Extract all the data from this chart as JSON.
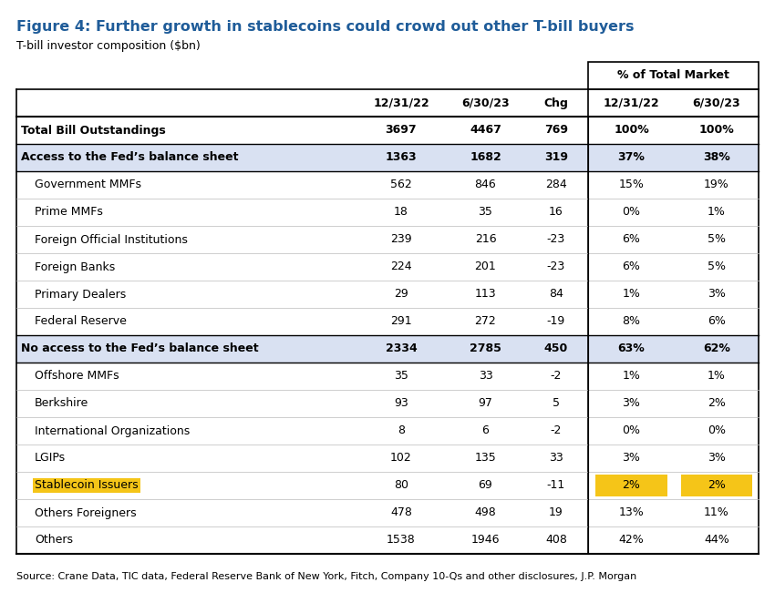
{
  "title": "Figure 4: Further growth in stablecoins could crowd out other T-bill buyers",
  "subtitle": "T-bill investor composition ($bn)",
  "source": "Source: Crane Data, TIC data, Federal Reserve Bank of New York, Fitch, Company 10-Qs and other disclosures, J.P. Morgan",
  "title_color": "#1F5C99",
  "col_headers": [
    "12/31/22",
    "6/30/23",
    "Chg",
    "12/31/22",
    "6/30/23"
  ],
  "super_header": "% of Total Market",
  "rows": [
    {
      "label": "Total Bill Outstandings",
      "bold": true,
      "shaded": false,
      "indent": false,
      "vals": [
        "3697",
        "4467",
        "769",
        "100%",
        "100%"
      ],
      "highlight_label": false,
      "highlight_vals": []
    },
    {
      "label": "Access to the Fed’s balance sheet",
      "bold": true,
      "shaded": true,
      "indent": false,
      "vals": [
        "1363",
        "1682",
        "319",
        "37%",
        "38%"
      ],
      "highlight_label": false,
      "highlight_vals": []
    },
    {
      "label": "Government MMFs",
      "bold": false,
      "shaded": false,
      "indent": true,
      "vals": [
        "562",
        "846",
        "284",
        "15%",
        "19%"
      ],
      "highlight_label": false,
      "highlight_vals": []
    },
    {
      "label": "Prime MMFs",
      "bold": false,
      "shaded": false,
      "indent": true,
      "vals": [
        "18",
        "35",
        "16",
        "0%",
        "1%"
      ],
      "highlight_label": false,
      "highlight_vals": []
    },
    {
      "label": "Foreign Official Institutions",
      "bold": false,
      "shaded": false,
      "indent": true,
      "vals": [
        "239",
        "216",
        "-23",
        "6%",
        "5%"
      ],
      "highlight_label": false,
      "highlight_vals": []
    },
    {
      "label": "Foreign Banks",
      "bold": false,
      "shaded": false,
      "indent": true,
      "vals": [
        "224",
        "201",
        "-23",
        "6%",
        "5%"
      ],
      "highlight_label": false,
      "highlight_vals": []
    },
    {
      "label": "Primary Dealers",
      "bold": false,
      "shaded": false,
      "indent": true,
      "vals": [
        "29",
        "113",
        "84",
        "1%",
        "3%"
      ],
      "highlight_label": false,
      "highlight_vals": []
    },
    {
      "label": "Federal Reserve",
      "bold": false,
      "shaded": false,
      "indent": true,
      "vals": [
        "291",
        "272",
        "-19",
        "8%",
        "6%"
      ],
      "highlight_label": false,
      "highlight_vals": []
    },
    {
      "label": "No access to the Fed’s balance sheet",
      "bold": true,
      "shaded": true,
      "indent": false,
      "vals": [
        "2334",
        "2785",
        "450",
        "63%",
        "62%"
      ],
      "highlight_label": false,
      "highlight_vals": []
    },
    {
      "label": "Offshore MMFs",
      "bold": false,
      "shaded": false,
      "indent": true,
      "vals": [
        "35",
        "33",
        "-2",
        "1%",
        "1%"
      ],
      "highlight_label": false,
      "highlight_vals": []
    },
    {
      "label": "Berkshire",
      "bold": false,
      "shaded": false,
      "indent": true,
      "vals": [
        "93",
        "97",
        "5",
        "3%",
        "2%"
      ],
      "highlight_label": false,
      "highlight_vals": []
    },
    {
      "label": "International Organizations",
      "bold": false,
      "shaded": false,
      "indent": true,
      "vals": [
        "8",
        "6",
        "-2",
        "0%",
        "0%"
      ],
      "highlight_label": false,
      "highlight_vals": []
    },
    {
      "label": "LGIPs",
      "bold": false,
      "shaded": false,
      "indent": true,
      "vals": [
        "102",
        "135",
        "33",
        "3%",
        "3%"
      ],
      "highlight_label": false,
      "highlight_vals": []
    },
    {
      "label": "Stablecoin Issuers",
      "bold": false,
      "shaded": false,
      "indent": true,
      "vals": [
        "80",
        "69",
        "-11",
        "2%",
        "2%"
      ],
      "highlight_label": true,
      "highlight_vals": [
        3,
        4
      ]
    },
    {
      "label": "Others Foreigners",
      "bold": false,
      "shaded": false,
      "indent": true,
      "vals": [
        "478",
        "498",
        "19",
        "13%",
        "11%"
      ],
      "highlight_label": false,
      "highlight_vals": []
    },
    {
      "label": "Others",
      "bold": false,
      "shaded": false,
      "indent": true,
      "vals": [
        "1538",
        "1946",
        "408",
        "42%",
        "44%"
      ],
      "highlight_label": false,
      "highlight_vals": []
    }
  ],
  "shaded_color": "#D9E1F2",
  "highlight_color": "#F5C518",
  "bg_color": "#FFFFFF",
  "font_size": 9.0,
  "header_font_size": 9.0,
  "title_font_size": 11.5,
  "subtitle_font_size": 9.0,
  "source_font_size": 8.0
}
